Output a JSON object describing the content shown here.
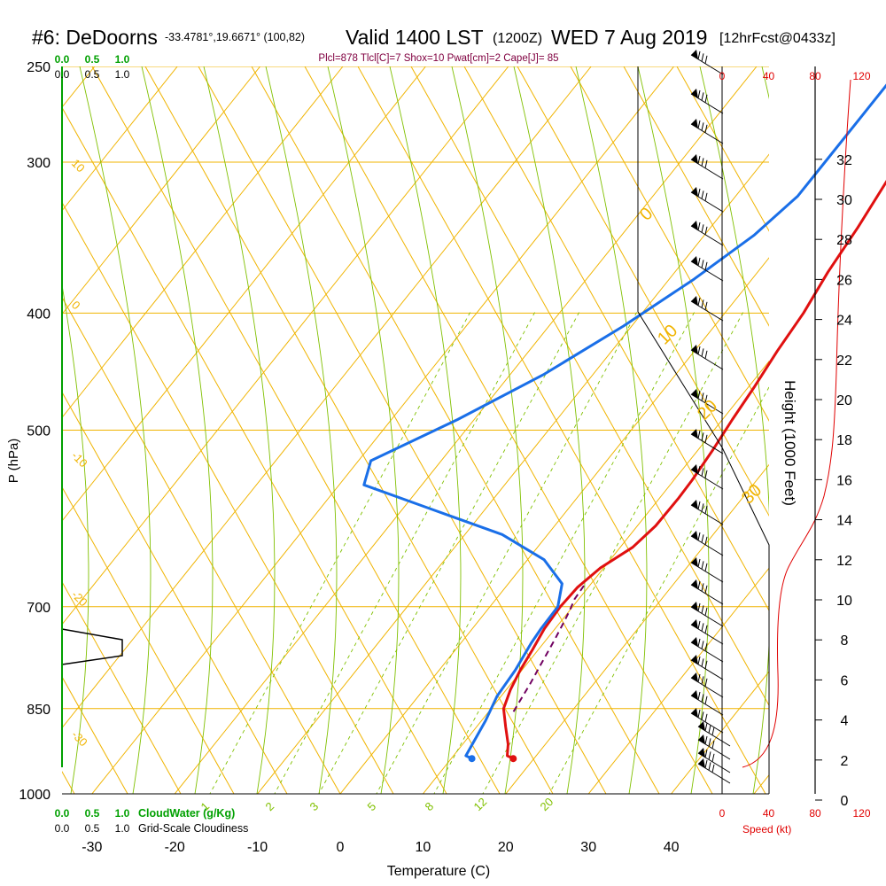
{
  "header": {
    "station": "#6: DeDoorns",
    "coords": "-33.4781°,19.6671° (100,82)",
    "valid": "Valid 1400 LST",
    "utc": "(1200Z)",
    "date": "WED 7 Aug 2019",
    "forecast": "[12hrFcst@0433z]"
  },
  "indices": "Plcl=878 Tlcl[C]=7 Shox=10 Pwat[cm]=2 Cape[J]= 85",
  "colors": {
    "isotherm": "#f0b400",
    "mixing_ratio": "#80c000",
    "dewpoint": "#1a6fe8",
    "temperature": "#e01010",
    "parcel": "#700060",
    "cloud_water": "#00a000",
    "speed": "#e00000"
  },
  "chart_data": {
    "type": "line",
    "title": "",
    "xlabel": "Temperature (C)",
    "ylabel": "P (hPa)",
    "y2label": "Height (1000 Feet)",
    "x_ticks": [
      "-30",
      "-20",
      "-10",
      "0",
      "10",
      "20",
      "30",
      "40"
    ],
    "y_ticks": [
      "250",
      "300",
      "400",
      "500",
      "700",
      "850",
      "1000"
    ],
    "height_ticks": [
      "0",
      "2",
      "4",
      "6",
      "8",
      "10",
      "12",
      "14",
      "16",
      "18",
      "20",
      "22",
      "24",
      "26",
      "28",
      "30",
      "32"
    ],
    "speed_ticks": [
      "0",
      "40",
      "80",
      "120"
    ],
    "speed_label": "Speed (kt)",
    "cloud_water_ticks": [
      "0.0",
      "0.5",
      "1.0"
    ],
    "cloud_water_label": "CloudWater (g/Kg)",
    "cloudiness_ticks": [
      "0.0",
      "0.5",
      "1.0"
    ],
    "cloudiness_label": "Grid-Scale Cloudiness",
    "theta_labels": [
      "10",
      "0",
      "-10",
      "-20",
      "-30"
    ],
    "thetae_labels": [
      "0",
      "10",
      "20",
      "30"
    ],
    "mixing_ratio_labels": [
      "1",
      "2",
      "3",
      "5",
      "8",
      "12",
      "20"
    ],
    "series": [
      {
        "name": "temperature",
        "points": [
          [
            17.5,
            935
          ],
          [
            16.5,
            930
          ],
          [
            15.5,
            910
          ],
          [
            13.5,
            880
          ],
          [
            11.5,
            850
          ],
          [
            10.5,
            820
          ],
          [
            9.8,
            790
          ],
          [
            9.3,
            760
          ],
          [
            8.7,
            730
          ],
          [
            8.5,
            700
          ],
          [
            8.7,
            675
          ],
          [
            9.6,
            650
          ],
          [
            11.5,
            625
          ],
          [
            12.2,
            600
          ],
          [
            12.3,
            570
          ],
          [
            12.2,
            550
          ],
          [
            11.8,
            520
          ],
          [
            11.2,
            490
          ],
          [
            10.7,
            460
          ],
          [
            10.0,
            430
          ],
          [
            9.5,
            400
          ],
          [
            8.5,
            370
          ],
          [
            7.8,
            340
          ],
          [
            6.4,
            300
          ],
          [
            5.0,
            280
          ],
          [
            3.0,
            258
          ]
        ]
      },
      {
        "name": "dewpoint",
        "points": [
          [
            12.5,
            935
          ],
          [
            11.5,
            930
          ],
          [
            10.5,
            870
          ],
          [
            9.5,
            830
          ],
          [
            9.2,
            790
          ],
          [
            8.5,
            750
          ],
          [
            8.3,
            730
          ],
          [
            8.2,
            700
          ],
          [
            6.5,
            670
          ],
          [
            2.0,
            640
          ],
          [
            -5.5,
            610
          ],
          [
            -17.0,
            580
          ],
          [
            -27.0,
            555
          ],
          [
            -28.5,
            530
          ],
          [
            -22.0,
            490
          ],
          [
            -16.0,
            450
          ],
          [
            -11.0,
            410
          ],
          [
            -7.0,
            375
          ],
          [
            -4.0,
            345
          ],
          [
            -2.5,
            320
          ],
          [
            -2.5,
            300
          ],
          [
            -2.5,
            270
          ],
          [
            -2.5,
            255
          ]
        ]
      },
      {
        "name": "parcel",
        "points": [
          [
            13.0,
            855
          ],
          [
            12.3,
            810
          ],
          [
            11.7,
            780
          ],
          [
            11.0,
            745
          ],
          [
            10.4,
            720
          ],
          [
            10.0,
            705
          ],
          [
            9.5,
            690
          ],
          [
            9.3,
            670
          ]
        ]
      }
    ]
  }
}
